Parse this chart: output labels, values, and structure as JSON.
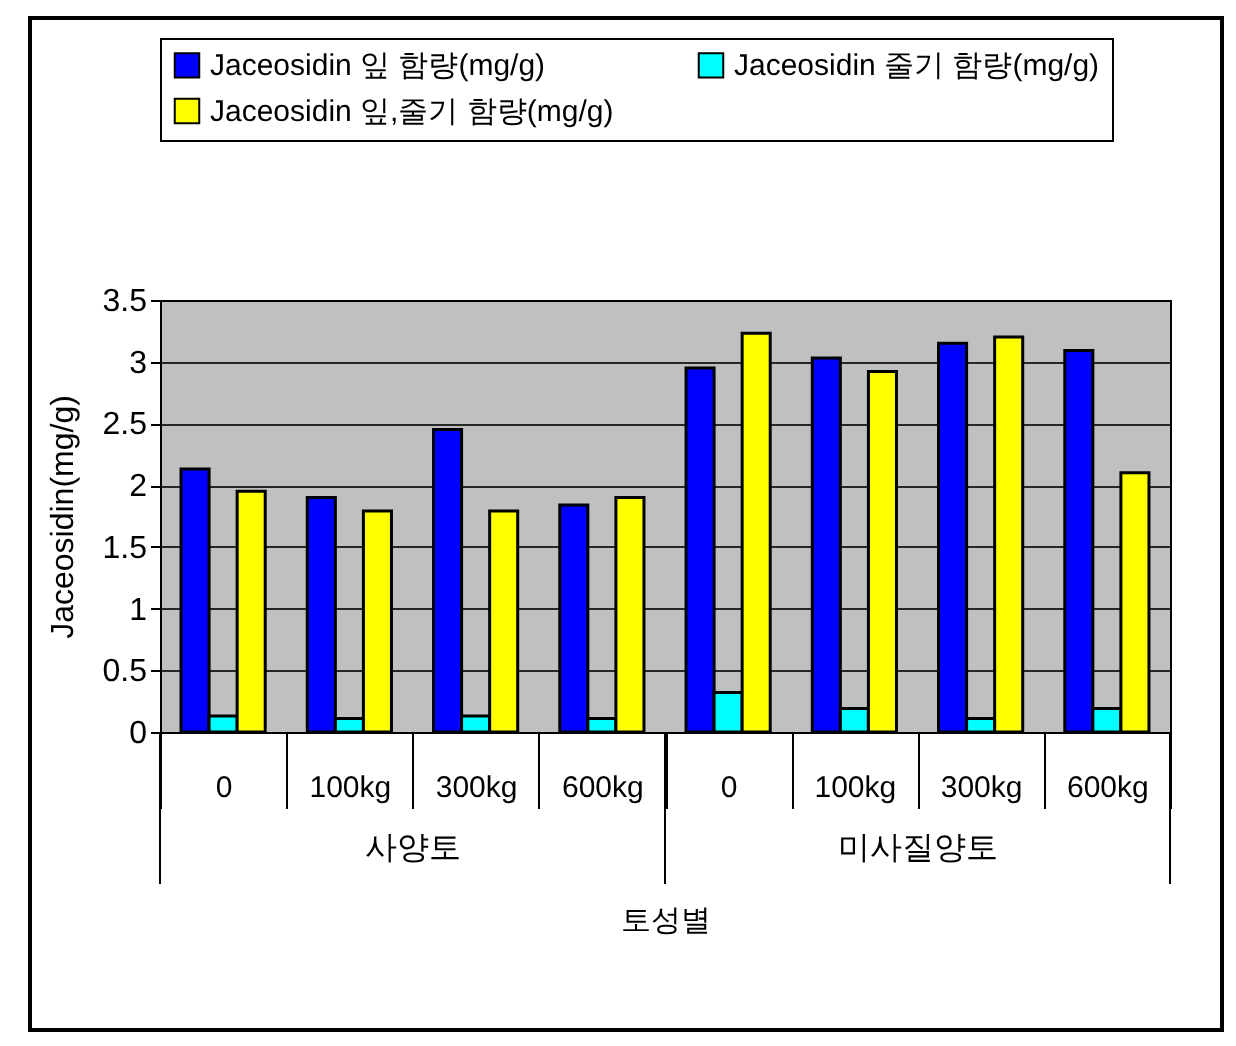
{
  "chart_data": {
    "type": "bar",
    "xlabel": "토성별",
    "ylabel": "Jaceosidin(mg/g)",
    "categories": [
      "0",
      "100kg",
      "300kg",
      "600kg",
      "0",
      "100kg",
      "300kg",
      "600kg"
    ],
    "series": [
      {
        "name": "Jaceosidin   잎 함량(mg/g)",
        "color": "#0000ff",
        "values": [
          2.13,
          1.9,
          2.45,
          1.84,
          2.95,
          3.03,
          3.15,
          3.09
        ]
      },
      {
        "name": "Jaceosidin 줄기 함량(mg/g)",
        "color": "#00ffff",
        "values": [
          0.13,
          0.11,
          0.13,
          0.11,
          0.32,
          0.19,
          0.11,
          0.19
        ]
      },
      {
        "name": "Jaceosidin 잎,줄기 함량(mg/g)",
        "color": "#ffff00",
        "values": [
          1.95,
          1.79,
          1.79,
          1.9,
          3.23,
          2.92,
          3.2,
          2.1
        ]
      }
    ],
    "annotations": [
      "사양토",
      "미사질양토"
    ],
    "ylim": [
      0,
      3.5
    ],
    "yticks": [
      0,
      0.5,
      1,
      1.5,
      2,
      2.5,
      3,
      3.5
    ],
    "grid": "y",
    "legend": "top"
  }
}
